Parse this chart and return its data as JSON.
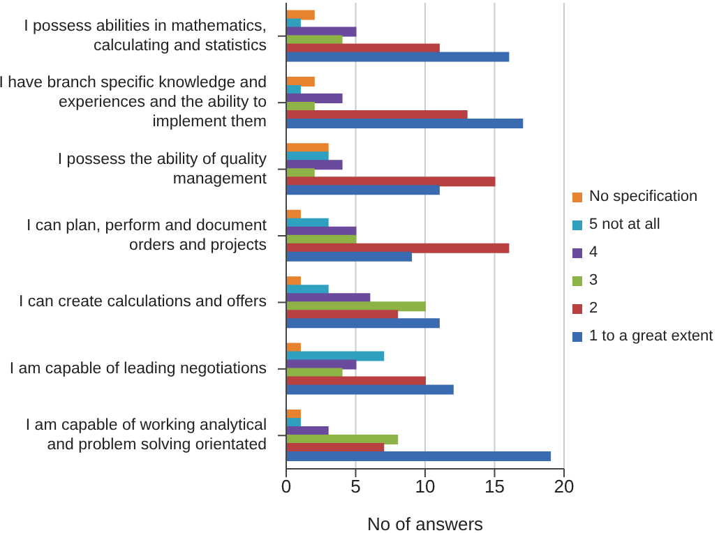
{
  "chart_data": {
    "type": "bar",
    "orientation": "horizontal",
    "xlabel": "No of answers",
    "categories": [
      "I possess abilities in mathematics, calculating and statistics",
      "I have branch specific knowledge and experiences and the ability to implement them",
      "I possess the ability of quality management",
      "I can plan, perform and document orders and projects",
      "I can create calculations and offers",
      "I am capable of leading negotiations",
      "I am capable of working analytical and problem solving orientated"
    ],
    "series": [
      {
        "name": "No specification",
        "color": "#e8822e",
        "values": [
          2,
          2,
          3,
          1,
          1,
          1,
          1
        ]
      },
      {
        "name": "5 not at all",
        "color": "#2fa0bf",
        "values": [
          1,
          1,
          3,
          3,
          3,
          7,
          1
        ]
      },
      {
        "name": "4",
        "color": "#6a4a9c",
        "values": [
          5,
          4,
          4,
          5,
          6,
          5,
          3
        ]
      },
      {
        "name": "3",
        "color": "#8db346",
        "values": [
          4,
          2,
          2,
          5,
          10,
          4,
          8
        ]
      },
      {
        "name": "2",
        "color": "#b94040",
        "values": [
          11,
          13,
          15,
          16,
          8,
          10,
          7
        ]
      },
      {
        "name": "1 to a great extent",
        "color": "#3a6ab0",
        "values": [
          16,
          17,
          11,
          9,
          11,
          12,
          19
        ]
      }
    ],
    "xlim": [
      0,
      20
    ],
    "xticks": [
      0,
      5,
      10,
      15,
      20
    ],
    "grid": "x",
    "legend": "right"
  }
}
